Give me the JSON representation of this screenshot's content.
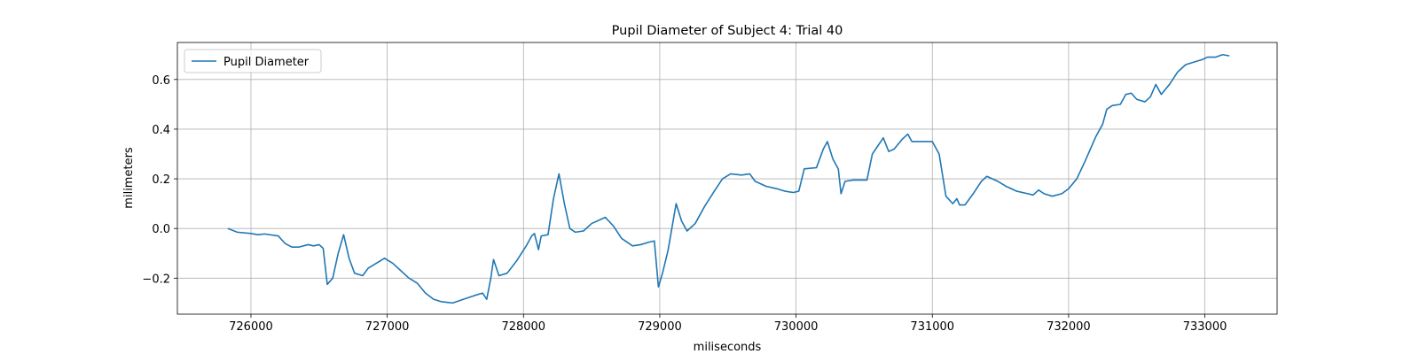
{
  "chart_data": {
    "type": "line",
    "title": "Pupil Diameter of Subject 4: Trial 40",
    "x_label": "miliseconds",
    "y_label": "milimeters",
    "grid": true,
    "legend": "upper left",
    "xlim": [
      725460,
      733530
    ],
    "ylim": [
      -0.345,
      0.749
    ],
    "xticks": [
      726000,
      727000,
      728000,
      729000,
      730000,
      731000,
      732000,
      733000
    ],
    "yticks": [
      {
        "value": -0.2,
        "label": "−0.2"
      },
      {
        "value": 0,
        "label": "0.0"
      },
      0.2,
      0.4,
      0.6
    ],
    "x": [
      725830,
      725900,
      726000,
      726050,
      726100,
      726200,
      726250,
      726300,
      726350,
      726420,
      726460,
      726500,
      726530,
      726560,
      726600,
      726640,
      726680,
      726720,
      726760,
      726820,
      726860,
      726920,
      726980,
      727040,
      727100,
      727160,
      727220,
      727280,
      727340,
      727400,
      727480,
      727560,
      727640,
      727700,
      727730,
      727760,
      727780,
      727820,
      727880,
      727950,
      728020,
      728060,
      728080,
      728110,
      728130,
      728180,
      728220,
      728260,
      728300,
      728340,
      728380,
      728440,
      728500,
      728560,
      728600,
      728660,
      728720,
      728800,
      728860,
      728920,
      728960,
      728990,
      729020,
      729060,
      729120,
      729160,
      729200,
      729260,
      729330,
      729400,
      729460,
      729520,
      729600,
      729660,
      729700,
      729780,
      729860,
      729920,
      729980,
      730020,
      730060,
      730150,
      730200,
      730230,
      730270,
      730310,
      730330,
      730360,
      730420,
      730520,
      730560,
      730640,
      730680,
      730720,
      730780,
      730820,
      730850,
      731000,
      731050,
      731100,
      731150,
      731180,
      731200,
      731240,
      731300,
      731360,
      731400,
      731480,
      731540,
      731620,
      731700,
      731740,
      731780,
      731820,
      731880,
      731950,
      732000,
      732060,
      732120,
      732200,
      732250,
      732280,
      732320,
      732380,
      732420,
      732460,
      732500,
      732560,
      732600,
      732640,
      732680,
      732740,
      732800,
      732860,
      732920,
      732980,
      733020,
      733080,
      733130,
      733180
    ],
    "series": [
      {
        "name": "Pupil Diameter",
        "color": "#1f77b4",
        "values": [
          0,
          -0.015,
          -0.02,
          -0.025,
          -0.022,
          -0.03,
          -0.06,
          -0.075,
          -0.075,
          -0.065,
          -0.07,
          -0.065,
          -0.08,
          -0.225,
          -0.2,
          -0.1,
          -0.025,
          -0.12,
          -0.18,
          -0.19,
          -0.16,
          -0.14,
          -0.12,
          -0.14,
          -0.17,
          -0.2,
          -0.22,
          -0.26,
          -0.285,
          -0.295,
          -0.3,
          -0.285,
          -0.27,
          -0.26,
          -0.285,
          -0.2,
          -0.125,
          -0.19,
          -0.18,
          -0.13,
          -0.07,
          -0.03,
          -0.02,
          -0.085,
          -0.03,
          -0.025,
          0.12,
          0.22,
          0.1,
          0,
          -0.015,
          -0.01,
          0.02,
          0.035,
          0.045,
          0.01,
          -0.04,
          -0.07,
          -0.065,
          -0.055,
          -0.05,
          -0.235,
          -0.18,
          -0.09,
          0.1,
          0.03,
          -0.01,
          0.02,
          0.09,
          0.15,
          0.2,
          0.22,
          0.215,
          0.22,
          0.19,
          0.17,
          0.16,
          0.15,
          0.145,
          0.15,
          0.24,
          0.245,
          0.32,
          0.35,
          0.28,
          0.24,
          0.14,
          0.19,
          0.195,
          0.195,
          0.3,
          0.365,
          0.31,
          0.32,
          0.36,
          0.38,
          0.35,
          0.35,
          0.3,
          0.13,
          0.1,
          0.12,
          0.095,
          0.095,
          0.14,
          0.19,
          0.21,
          0.19,
          0.17,
          0.15,
          0.14,
          0.135,
          0.155,
          0.14,
          0.13,
          0.14,
          0.16,
          0.2,
          0.27,
          0.37,
          0.42,
          0.48,
          0.495,
          0.5,
          0.54,
          0.545,
          0.52,
          0.51,
          0.53,
          0.58,
          0.54,
          0.58,
          0.63,
          0.66,
          0.67,
          0.68,
          0.69,
          0.69,
          0.7,
          0.695
        ]
      }
    ]
  }
}
